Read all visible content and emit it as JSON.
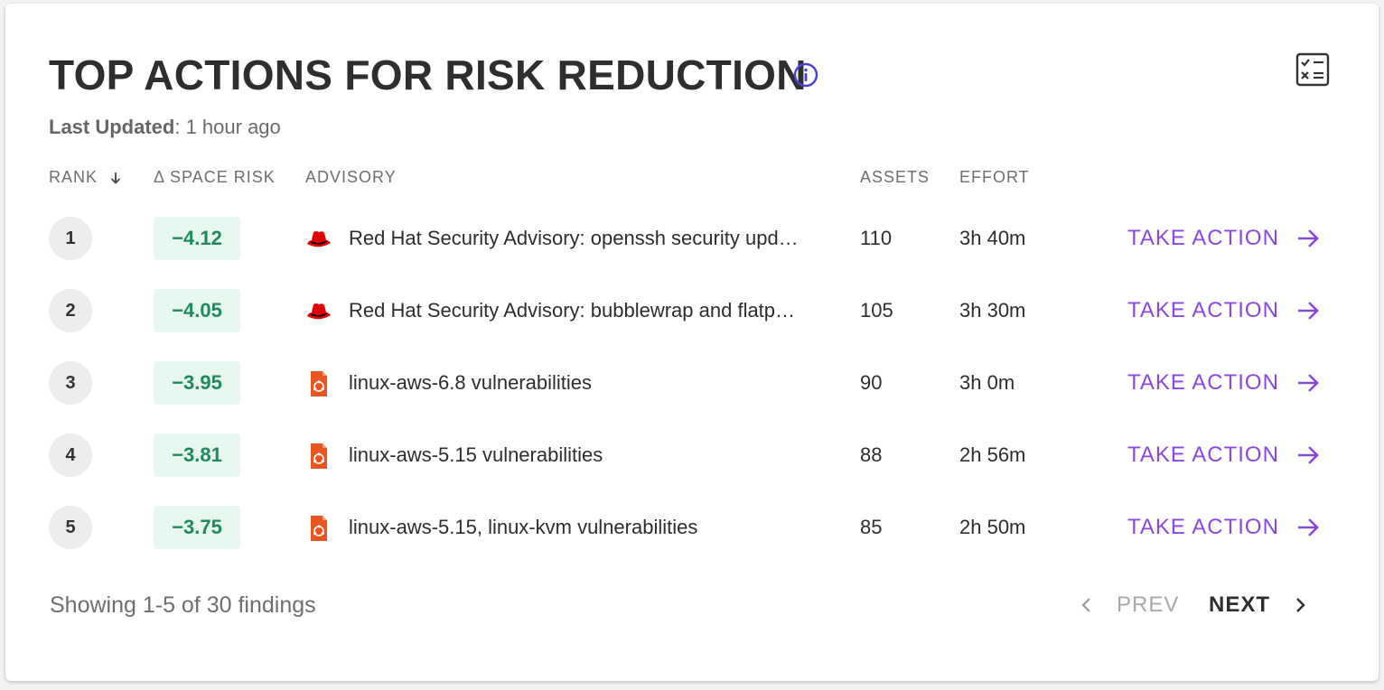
{
  "header": {
    "title": "TOP ACTIONS FOR RISK REDUCTION",
    "last_updated_label": "Last Updated",
    "last_updated_value": ": 1 hour ago"
  },
  "table": {
    "columns": {
      "rank": "RANK",
      "space_risk": "Δ SPACE RISK",
      "advisory": "ADVISORY",
      "assets": "ASSETS",
      "effort": "EFFORT"
    },
    "action_label": "TAKE ACTION",
    "rows": [
      {
        "rank": "1",
        "risk": "−4.12",
        "advisory": "Red Hat Security Advisory: openssh security upd…",
        "icon": "redhat-icon",
        "assets": "110",
        "effort": "3h 40m"
      },
      {
        "rank": "2",
        "risk": "−4.05",
        "advisory": "Red Hat Security Advisory: bubblewrap and flatp…",
        "icon": "redhat-icon",
        "assets": "105",
        "effort": "3h 30m"
      },
      {
        "rank": "3",
        "risk": "−3.95",
        "advisory": "linux-aws-6.8 vulnerabilities",
        "icon": "ubuntu-icon",
        "assets": "90",
        "effort": "3h 0m"
      },
      {
        "rank": "4",
        "risk": "−3.81",
        "advisory": "linux-aws-5.15 vulnerabilities",
        "icon": "ubuntu-icon",
        "assets": "88",
        "effort": "2h 56m"
      },
      {
        "rank": "5",
        "risk": "−3.75",
        "advisory": "linux-aws-5.15, linux-kvm vulnerabilities",
        "icon": "ubuntu-icon",
        "assets": "85",
        "effort": "2h 50m"
      }
    ]
  },
  "footer": {
    "showing": "Showing 1-5 of 30 findings",
    "prev_label": "PREV",
    "next_label": "NEXT"
  },
  "colors": {
    "accent": "#8a48e0",
    "risk_text": "#1e8a5c",
    "risk_bg": "#e6f7ef",
    "info_icon": "#4a3fd6",
    "redhat": "#e00000",
    "ubuntu": "#e95420"
  }
}
